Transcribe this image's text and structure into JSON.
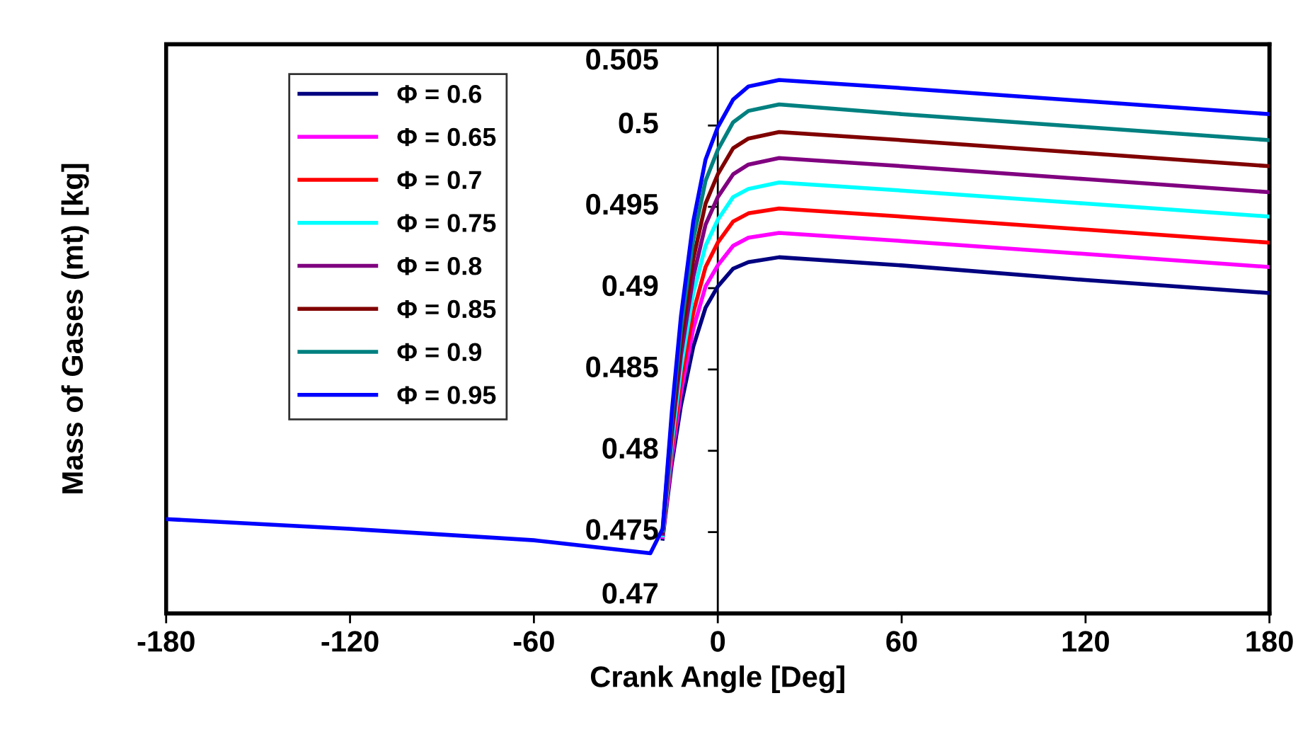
{
  "chart_data": {
    "type": "line",
    "xlabel": "Crank Angle [Deg]",
    "ylabel": "Mass of Gases (mt) [kg]",
    "x": [
      -180,
      -120,
      -60,
      -22,
      -18,
      -15,
      -12,
      -8,
      -4,
      0,
      5,
      10,
      20,
      60,
      120,
      180
    ],
    "xlim": [
      -180,
      180
    ],
    "xticks": [
      -180,
      -120,
      -60,
      0,
      60,
      120,
      180
    ],
    "ylim": [
      0.47,
      0.505
    ],
    "yticks": [
      0.47,
      0.475,
      0.48,
      0.485,
      0.49,
      0.495,
      0.5,
      0.505
    ],
    "legend": "top left",
    "grid": false,
    "marker": "none",
    "line_style": "solid",
    "series": [
      {
        "name": "Φ = 0.6",
        "color": "#000080",
        "values": [
          null,
          null,
          null,
          null,
          0.4746,
          0.4792,
          0.4828,
          0.4864,
          0.4888,
          0.4901,
          0.4912,
          0.4916,
          0.4919,
          0.4914,
          0.4905,
          0.4897
        ]
      },
      {
        "name": "Φ = 0.65",
        "color": "#ff00ff",
        "values": [
          null,
          null,
          null,
          null,
          0.4747,
          0.4796,
          0.4836,
          0.4875,
          0.4901,
          0.4914,
          0.4926,
          0.4931,
          0.4934,
          0.4929,
          0.4921,
          0.4913
        ]
      },
      {
        "name": "Φ = 0.7",
        "color": "#ff0000",
        "values": [
          null,
          null,
          null,
          null,
          0.4748,
          0.4801,
          0.4843,
          0.4885,
          0.4913,
          0.4928,
          0.4941,
          0.4946,
          0.4949,
          0.4944,
          0.4936,
          0.4928
        ]
      },
      {
        "name": "Φ = 0.75",
        "color": "#00ffff",
        "values": [
          null,
          null,
          null,
          null,
          0.4748,
          0.4805,
          0.4851,
          0.4897,
          0.4926,
          0.4942,
          0.4956,
          0.4961,
          0.4965,
          0.496,
          0.4952,
          0.4944
        ]
      },
      {
        "name": "Φ = 0.8",
        "color": "#800080",
        "values": [
          null,
          null,
          null,
          null,
          0.4749,
          0.481,
          0.4859,
          0.4907,
          0.4939,
          0.4956,
          0.497,
          0.4976,
          0.498,
          0.4975,
          0.4967,
          0.4959
        ]
      },
      {
        "name": "Φ = 0.85",
        "color": "#800000",
        "values": [
          null,
          null,
          null,
          null,
          0.475,
          0.4815,
          0.4867,
          0.4918,
          0.4952,
          0.497,
          0.4986,
          0.4992,
          0.4996,
          0.4991,
          0.4983,
          0.4975
        ]
      },
      {
        "name": "Φ = 0.9",
        "color": "#008080",
        "values": [
          null,
          null,
          null,
          null,
          0.4751,
          0.482,
          0.4875,
          0.493,
          0.4966,
          0.4985,
          0.5002,
          0.5009,
          0.5013,
          0.5007,
          0.4999,
          0.4991
        ]
      },
      {
        "name": "Φ = 0.95",
        "color": "#0000ff",
        "values": [
          0.4758,
          0.4752,
          0.4745,
          0.4737,
          0.4752,
          0.4824,
          0.4883,
          0.4941,
          0.4979,
          0.4999,
          0.5016,
          0.5024,
          0.5028,
          0.5023,
          0.5015,
          0.5007
        ]
      }
    ]
  }
}
